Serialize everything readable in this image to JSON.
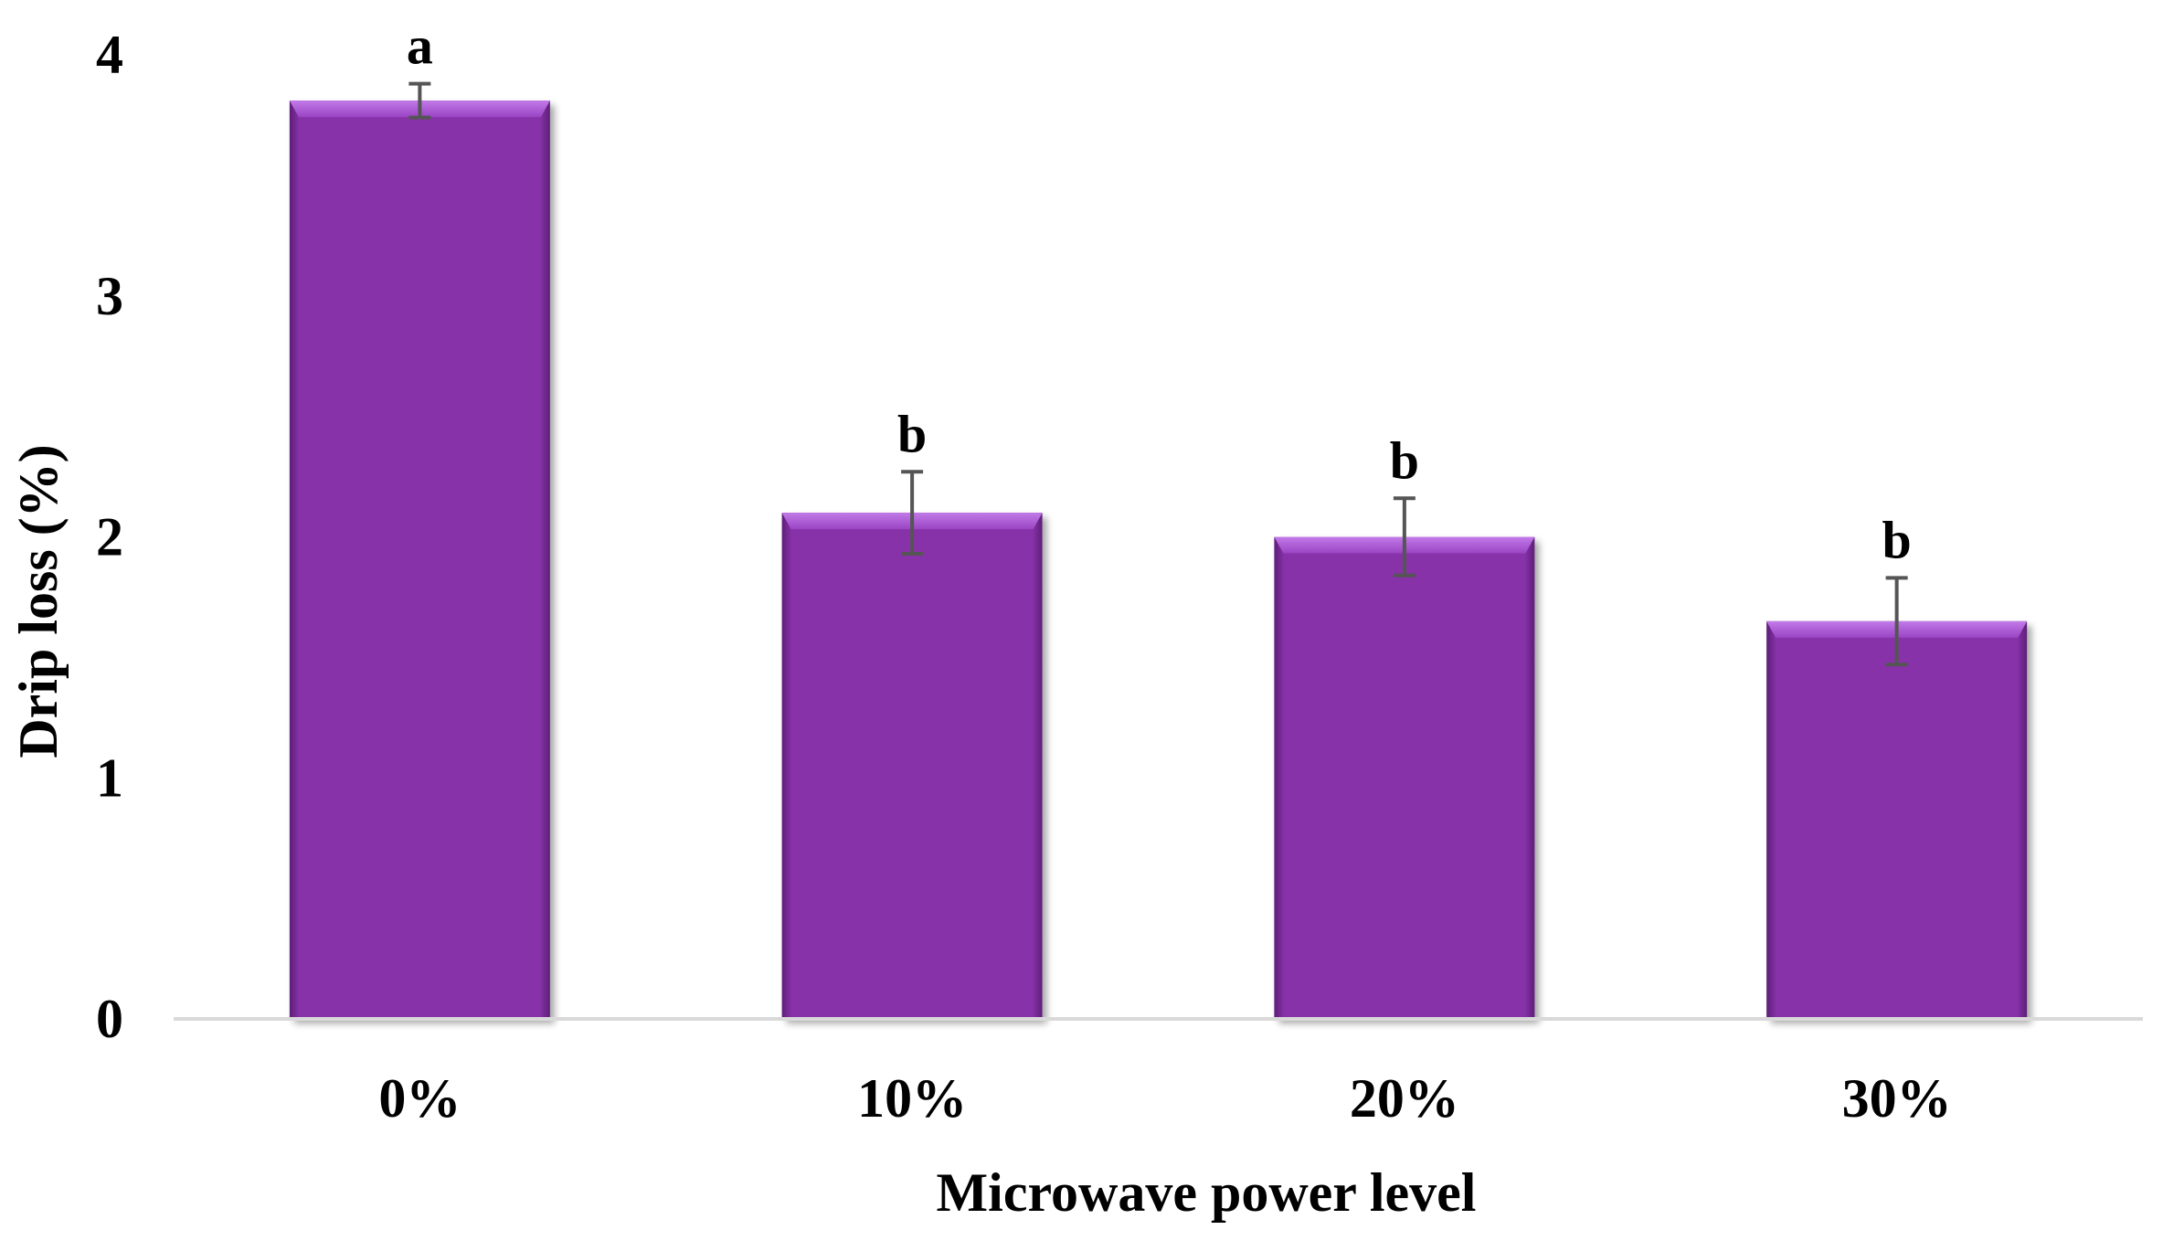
{
  "chart_data": {
    "type": "bar",
    "title": "",
    "xlabel": "Microwave power level",
    "ylabel": "Drip loss (%)",
    "categories": [
      "0%",
      "10%",
      "20%",
      "30%"
    ],
    "values": [
      3.81,
      2.1,
      2.0,
      1.65
    ],
    "error": [
      0.07,
      0.17,
      0.16,
      0.18
    ],
    "significance_letters": [
      "a",
      "b",
      "b",
      "b"
    ],
    "ylim": [
      0,
      4
    ],
    "yticks": [
      "0",
      "1",
      "2",
      "3",
      "4"
    ],
    "grid": false,
    "legend": "none",
    "bar_color": "#8833AA",
    "bar_highlight_color": "#B066DD",
    "bar_shadow_color": "#5E1F78",
    "error_bar_color": "#555555",
    "axis_color": "#D9D9D9"
  }
}
